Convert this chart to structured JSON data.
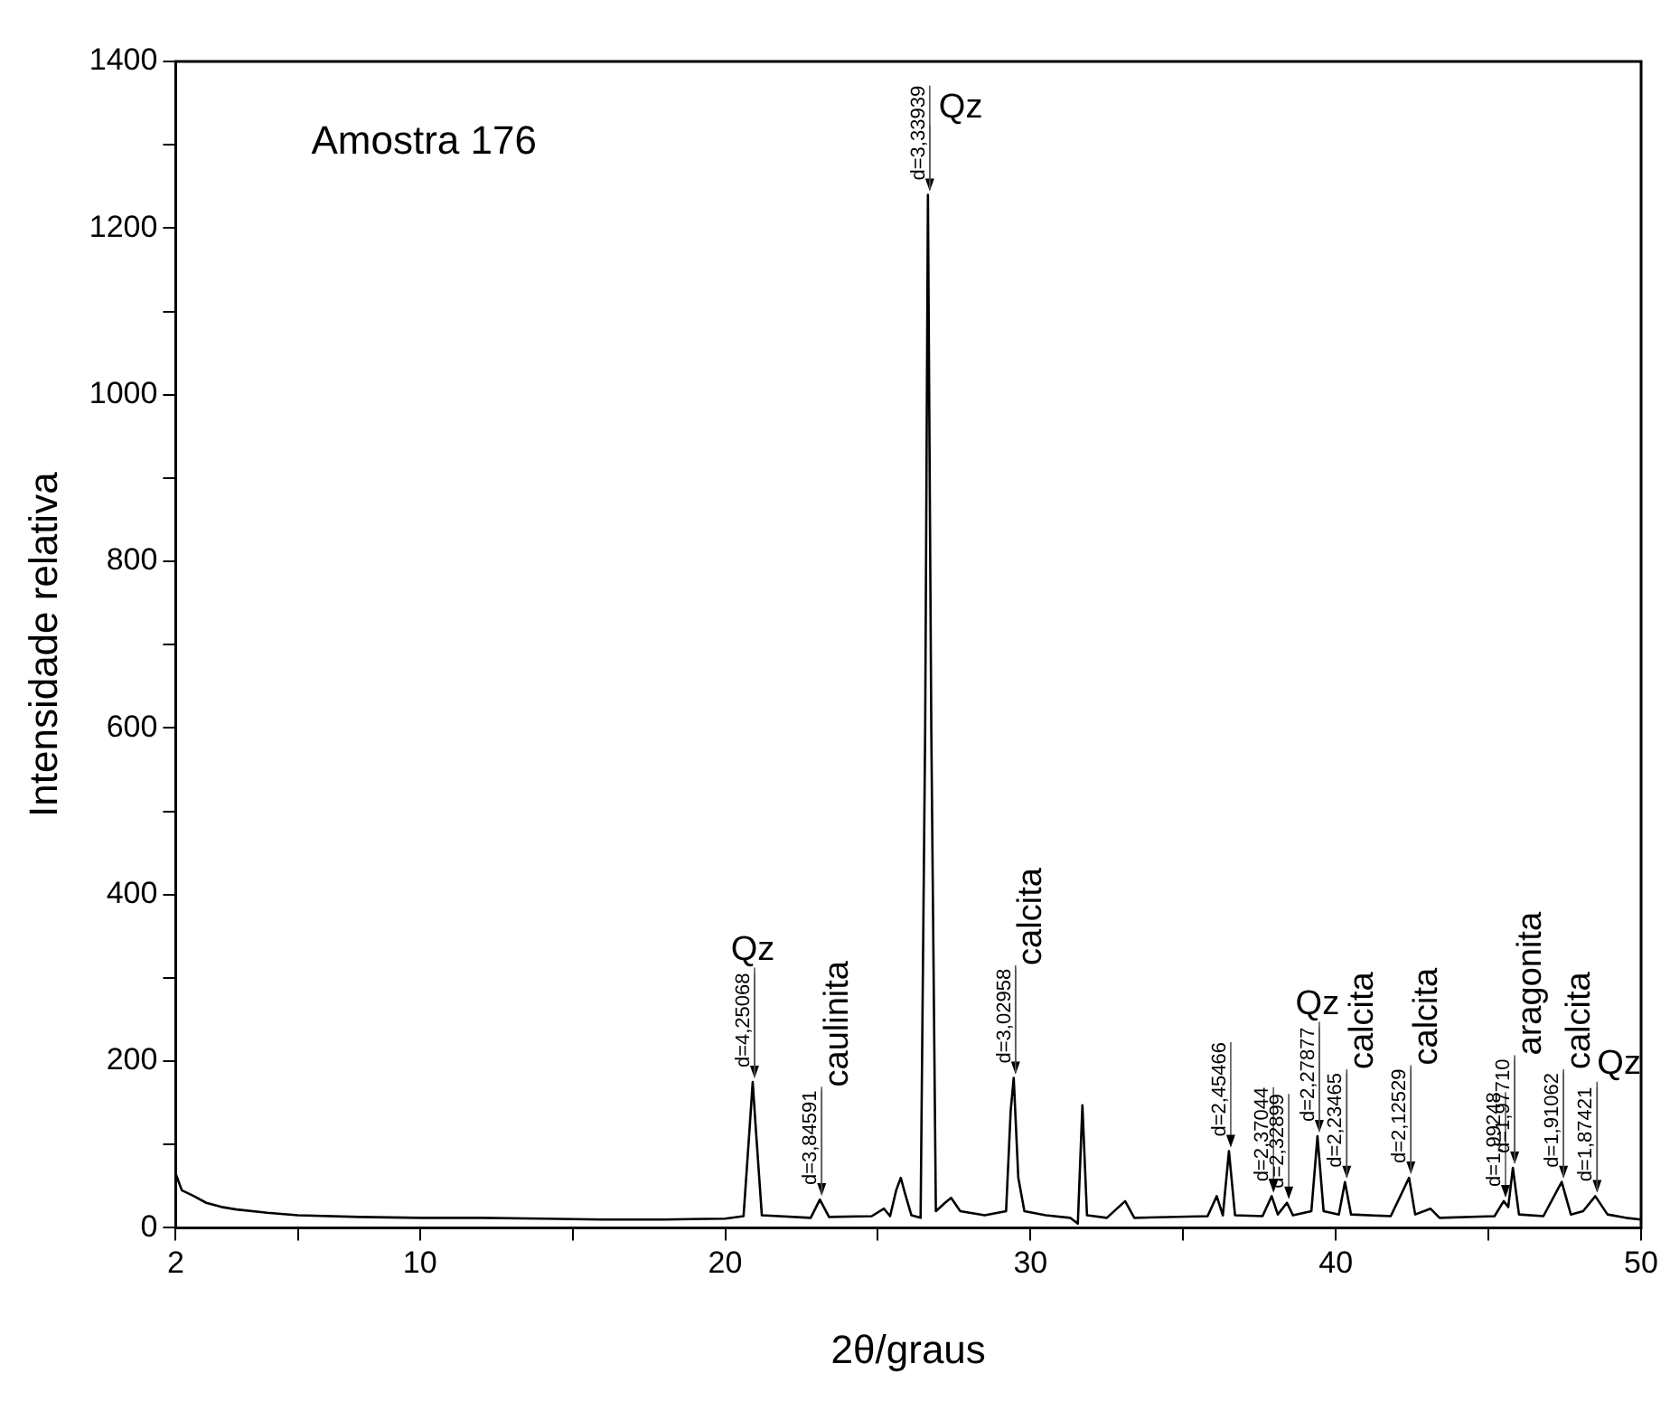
{
  "chart_data": {
    "type": "line",
    "xlabel": "2θ/graus",
    "ylabel": "Intensidade relativa",
    "x": [
      2,
      2.2,
      2.6,
      3,
      3.5,
      4,
      5,
      6,
      8,
      10,
      12,
      14,
      16,
      18,
      20,
      20.6,
      20.8,
      20.9,
      21.0,
      21.2,
      22.8,
      23.1,
      23.4,
      24.8,
      25.2,
      25.4,
      25.6,
      25.75,
      25.9,
      26.1,
      26.4,
      26.55,
      26.64,
      26.75,
      26.9,
      27.2,
      27.4,
      27.7,
      28.5,
      29.2,
      29.35,
      29.45,
      29.6,
      29.8,
      30.5,
      31.3,
      31.55,
      31.7,
      31.85,
      32.5,
      33.1,
      33.4,
      35.8,
      36.1,
      36.3,
      36.5,
      36.7,
      37.6,
      37.9,
      38.1,
      38.4,
      38.6,
      39.2,
      39.4,
      39.6,
      40.1,
      40.3,
      40.5,
      41.8,
      42.4,
      42.6,
      43.1,
      43.4,
      45.2,
      45.5,
      45.65,
      45.8,
      46.0,
      46.8,
      47.4,
      47.7,
      48.1,
      48.5,
      48.9,
      49.5,
      50
    ],
    "series": [
      {
        "color": "#000000",
        "values": [
          65,
          45,
          38,
          30,
          25,
          22,
          18,
          15,
          13,
          12,
          12,
          11,
          10,
          10,
          11,
          14,
          120,
          175,
          120,
          15,
          12,
          34,
          13,
          14,
          23,
          14,
          45,
          60,
          40,
          15,
          12,
          600,
          1240,
          600,
          20,
          30,
          36,
          20,
          15,
          20,
          140,
          180,
          60,
          20,
          15,
          12,
          5,
          147,
          15,
          12,
          32,
          12,
          14,
          38,
          15,
          92,
          15,
          14,
          38,
          16,
          30,
          15,
          20,
          110,
          20,
          16,
          55,
          16,
          14,
          60,
          16,
          23,
          12,
          14,
          32,
          25,
          72,
          16,
          14,
          55,
          16,
          20,
          38,
          16,
          12,
          10
        ]
      }
    ],
    "xlim": [
      2,
      50
    ],
    "xticks": [
      2,
      {
        "value": 6,
        "label": null
      },
      10,
      {
        "value": 15,
        "label": null
      },
      20,
      {
        "value": 25,
        "label": null
      },
      30,
      {
        "value": 35,
        "label": null
      },
      40,
      {
        "value": 45,
        "label": null
      },
      50
    ],
    "ylim": [
      0,
      1400
    ],
    "yticks": [
      0,
      {
        "value": 100,
        "label": null
      },
      200,
      {
        "value": 300,
        "label": null
      },
      400,
      {
        "value": 500,
        "label": null
      },
      600,
      {
        "value": 700,
        "label": null
      },
      800,
      {
        "value": 900,
        "label": null
      },
      1000,
      {
        "value": 1100,
        "label": null
      },
      1200,
      {
        "value": 1300,
        "label": null
      },
      1400
    ],
    "grid": false,
    "legend": false,
    "marker": "none",
    "line_style": "solid",
    "annotations": [
      "Amostra 176",
      {
        "text": "d=4,25068",
        "x": 20.9,
        "y": 175
      },
      {
        "text": "Qz",
        "x": 20.9,
        "y": 175
      },
      {
        "text": "d=3,84591",
        "x": 23.1,
        "y": 34
      },
      {
        "text": "caulinita",
        "x": 23.1,
        "y": 34
      },
      {
        "text": "d=3,33939",
        "x": 26.64,
        "y": 1240
      },
      {
        "text": "Qz",
        "x": 26.64,
        "y": 1240
      },
      {
        "text": "d=3,02958",
        "x": 29.45,
        "y": 180
      },
      {
        "text": "calcita",
        "x": 29.45,
        "y": 180
      },
      {
        "text": "d=2,45466",
        "x": 36.5,
        "y": 92
      },
      {
        "text": "d=2,37044",
        "x": 37.9,
        "y": 38
      },
      {
        "text": "d=2,32899",
        "x": 38.4,
        "y": 30
      },
      {
        "text": "d=2,27877",
        "x": 39.4,
        "y": 110
      },
      {
        "text": "Qz",
        "x": 39.4,
        "y": 110
      },
      {
        "text": "d=2,23465",
        "x": 40.3,
        "y": 55
      },
      {
        "text": "calcita",
        "x": 40.3,
        "y": 55
      },
      {
        "text": "d=2,12529",
        "x": 42.4,
        "y": 60
      },
      {
        "text": "calcita",
        "x": 42.4,
        "y": 60
      },
      {
        "text": "d=1,99248",
        "x": 45.5,
        "y": 32
      },
      {
        "text": "d=1,97710",
        "x": 45.8,
        "y": 72
      },
      {
        "text": "aragonita",
        "x": 45.8,
        "y": 72
      },
      {
        "text": "d=1,91062",
        "x": 47.4,
        "y": 55
      },
      {
        "text": "calcita",
        "x": 47.4,
        "y": 55
      },
      {
        "text": "d=1,87421",
        "x": 48.5,
        "y": 38
      },
      {
        "text": "Qz",
        "x": 48.5,
        "y": 38
      }
    ]
  }
}
